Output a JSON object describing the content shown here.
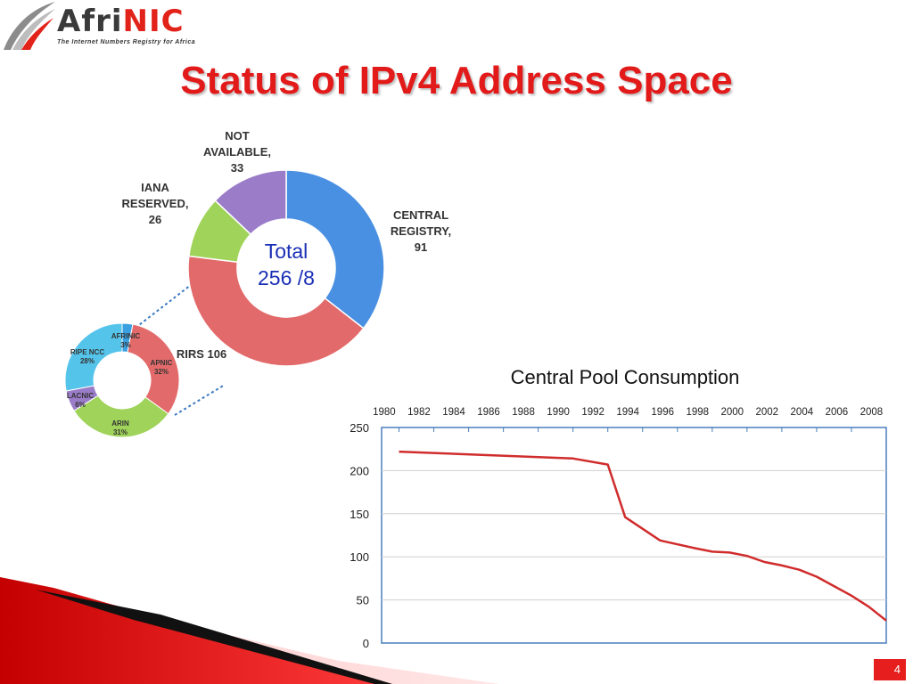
{
  "logo": {
    "name_part1": "Afri",
    "name_part2": "NIC",
    "tagline": "The Internet Numbers Registry for Africa"
  },
  "slide": {
    "title": "Status of IPv4 Address Space",
    "page_number": "4"
  },
  "colors": {
    "accent_red": "#e21a1a",
    "central_registry": "#4a90e2",
    "rirs": "#e36a6a",
    "iana_reserved": "#9fd35a",
    "not_available": "#9b7cc9"
  },
  "chart_data": [
    {
      "type": "pie",
      "center_text": [
        "Total",
        "256 /8"
      ],
      "slices": [
        {
          "label": [
            "CENTRAL",
            "REGISTRY,",
            "91"
          ],
          "value": 91
        },
        {
          "label": [
            "RIRS 106"
          ],
          "value": 106
        },
        {
          "label": [
            "IANA",
            "RESERVED,",
            "26"
          ],
          "value": 26
        },
        {
          "label": [
            "NOT",
            "AVAILABLE,",
            "33"
          ],
          "value": 33
        }
      ]
    },
    {
      "type": "pie",
      "slices": [
        {
          "label": [
            "AFRINIC",
            "3%"
          ],
          "value": 3
        },
        {
          "label": [
            "APNIC",
            "32%"
          ],
          "value": 32
        },
        {
          "label": [
            "ARIN",
            "31%"
          ],
          "value": 31
        },
        {
          "label": [
            "LACNIC",
            "6%"
          ],
          "value": 6
        },
        {
          "label": [
            "RIPE NCC",
            "28%"
          ],
          "value": 28
        }
      ]
    },
    {
      "type": "line",
      "title": "Central Pool Consumption",
      "x_ticks": [
        "1980",
        "1982",
        "1984",
        "1986",
        "1988",
        "1990",
        "1992",
        "1994",
        "1996",
        "1998",
        "2000",
        "2002",
        "2004",
        "2006",
        "2008"
      ],
      "y_ticks": [
        "0",
        "50",
        "100",
        "150",
        "200",
        "250"
      ],
      "xlim": [
        1980,
        2009
      ],
      "ylim": [
        0,
        250
      ],
      "grid": true,
      "series": [
        {
          "x": [
            1981,
            1991,
            1993,
            1994,
            1996,
            1998,
            1999,
            2000,
            2001,
            2002,
            2003,
            2004,
            2005,
            2006,
            2007,
            2008,
            2009
          ],
          "y": [
            222,
            214,
            207,
            146,
            119,
            110,
            106,
            105,
            101,
            94,
            90,
            85,
            77,
            66,
            55,
            42,
            26
          ]
        }
      ]
    }
  ]
}
